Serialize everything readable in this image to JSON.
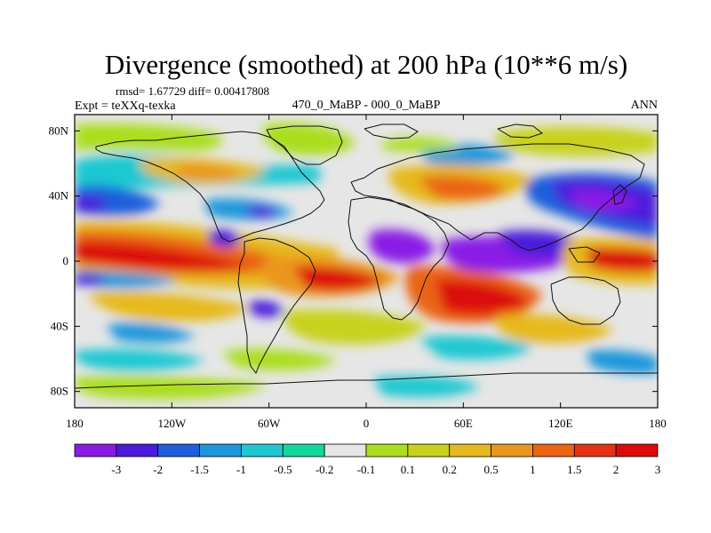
{
  "title": "Divergence (smoothed) at 200 hPa (10**6 m/s)",
  "stats_line": "rmsd= 1.67729 diff= 0.00417808",
  "left_label": "Expt = teXXq-texka",
  "center_label": "470_0_MaBP - 000_0_MaBP",
  "right_label": "ANN",
  "chart_data": {
    "type": "heatmap",
    "title": "Divergence (smoothed) at 200 hPa (10**6 m/s)",
    "projection": "cylindrical equidistant",
    "xlim": [
      -180,
      180
    ],
    "ylim": [
      -90,
      90
    ],
    "x_ticks": [
      {
        "value": -180,
        "label": "180"
      },
      {
        "value": -120,
        "label": "120W"
      },
      {
        "value": -60,
        "label": "60W"
      },
      {
        "value": 0,
        "label": "0"
      },
      {
        "value": 60,
        "label": "60E"
      },
      {
        "value": 120,
        "label": "120E"
      },
      {
        "value": 180,
        "label": "180"
      }
    ],
    "y_ticks": [
      {
        "value": 80,
        "label": "80N"
      },
      {
        "value": 40,
        "label": "40N"
      },
      {
        "value": 0,
        "label": "0"
      },
      {
        "value": -40,
        "label": "40S"
      },
      {
        "value": -80,
        "label": "80S"
      }
    ],
    "colorbar": {
      "colors": [
        "#8a1ae6",
        "#4b1adb",
        "#1e5fdc",
        "#1e96dc",
        "#1ec8d2",
        "#14d7a0",
        "#e6e6e6",
        "#aade1e",
        "#c8d21e",
        "#e6b91e",
        "#eb961e",
        "#eb6414",
        "#e63214",
        "#dc0a0a"
      ],
      "boundaries": [
        "-3",
        "-2",
        "-1.5",
        "-1",
        "-0.5",
        "-0.2",
        "-0.1",
        "0.1",
        "0.2",
        "0.5",
        "1",
        "1.5",
        "2",
        "3"
      ]
    }
  }
}
